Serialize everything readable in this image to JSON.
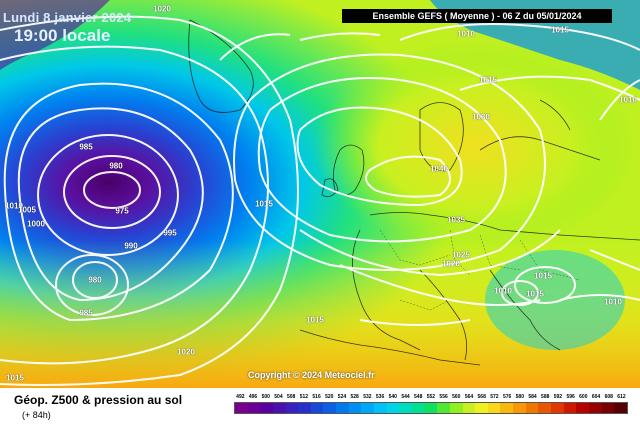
{
  "header": {
    "date_line": "Lundi 8 janvier 2024",
    "time_line": "19:00 locale",
    "run_banner": "Ensemble GEFS  ( Moyenne )  - 06 Z du 05/01/2024"
  },
  "map": {
    "copyright": "Copyright © 2024 Meteociel.fr",
    "isobar_labels": [
      {
        "text": "1020"
      },
      {
        "text": "1010"
      },
      {
        "text": "1015"
      },
      {
        "text": "1015"
      },
      {
        "text": "1030"
      },
      {
        "text": "1010"
      },
      {
        "text": "985"
      },
      {
        "text": "980"
      },
      {
        "text": "975"
      },
      {
        "text": "1010"
      },
      {
        "text": "1005"
      },
      {
        "text": "1000"
      },
      {
        "text": "995"
      },
      {
        "text": "990"
      },
      {
        "text": "1015"
      },
      {
        "text": "1040"
      },
      {
        "text": "1035"
      },
      {
        "text": "1025"
      },
      {
        "text": "1020"
      },
      {
        "text": "1015"
      },
      {
        "text": "1010"
      },
      {
        "text": "1015"
      },
      {
        "text": "1010"
      },
      {
        "text": "980"
      },
      {
        "text": "985"
      },
      {
        "text": "1015"
      },
      {
        "text": "1020"
      },
      {
        "text": "1015"
      }
    ]
  },
  "footer": {
    "product_title": "Géop. Z500 & pression au sol",
    "lead_time": "(+ 84h)",
    "legend": [
      {
        "value": "492",
        "color": "#7a0090"
      },
      {
        "value": "496",
        "color": "#6a0098"
      },
      {
        "value": "500",
        "color": "#5a00a0"
      },
      {
        "value": "504",
        "color": "#4a10b0"
      },
      {
        "value": "508",
        "color": "#3a20c0"
      },
      {
        "value": "512",
        "color": "#2830cc"
      },
      {
        "value": "516",
        "color": "#1848d8"
      },
      {
        "value": "520",
        "color": "#0a60e6"
      },
      {
        "value": "524",
        "color": "#0078ee"
      },
      {
        "value": "528",
        "color": "#0090f4"
      },
      {
        "value": "532",
        "color": "#00a8f8"
      },
      {
        "value": "536",
        "color": "#00c0f8"
      },
      {
        "value": "540",
        "color": "#00d4e6"
      },
      {
        "value": "544",
        "color": "#00dcc0"
      },
      {
        "value": "548",
        "color": "#00e090"
      },
      {
        "value": "552",
        "color": "#10e060"
      },
      {
        "value": "556",
        "color": "#50e830"
      },
      {
        "value": "560",
        "color": "#90f020"
      },
      {
        "value": "564",
        "color": "#c8f020"
      },
      {
        "value": "568",
        "color": "#f0f020"
      },
      {
        "value": "572",
        "color": "#f8d818"
      },
      {
        "value": "576",
        "color": "#f8b810"
      },
      {
        "value": "580",
        "color": "#f89808"
      },
      {
        "value": "584",
        "color": "#f07800"
      },
      {
        "value": "588",
        "color": "#e85800"
      },
      {
        "value": "592",
        "color": "#e03800"
      },
      {
        "value": "596",
        "color": "#d01800"
      },
      {
        "value": "600",
        "color": "#b80000"
      },
      {
        "value": "604",
        "color": "#980000"
      },
      {
        "value": "608",
        "color": "#780000"
      },
      {
        "value": "612",
        "color": "#580000"
      }
    ]
  }
}
